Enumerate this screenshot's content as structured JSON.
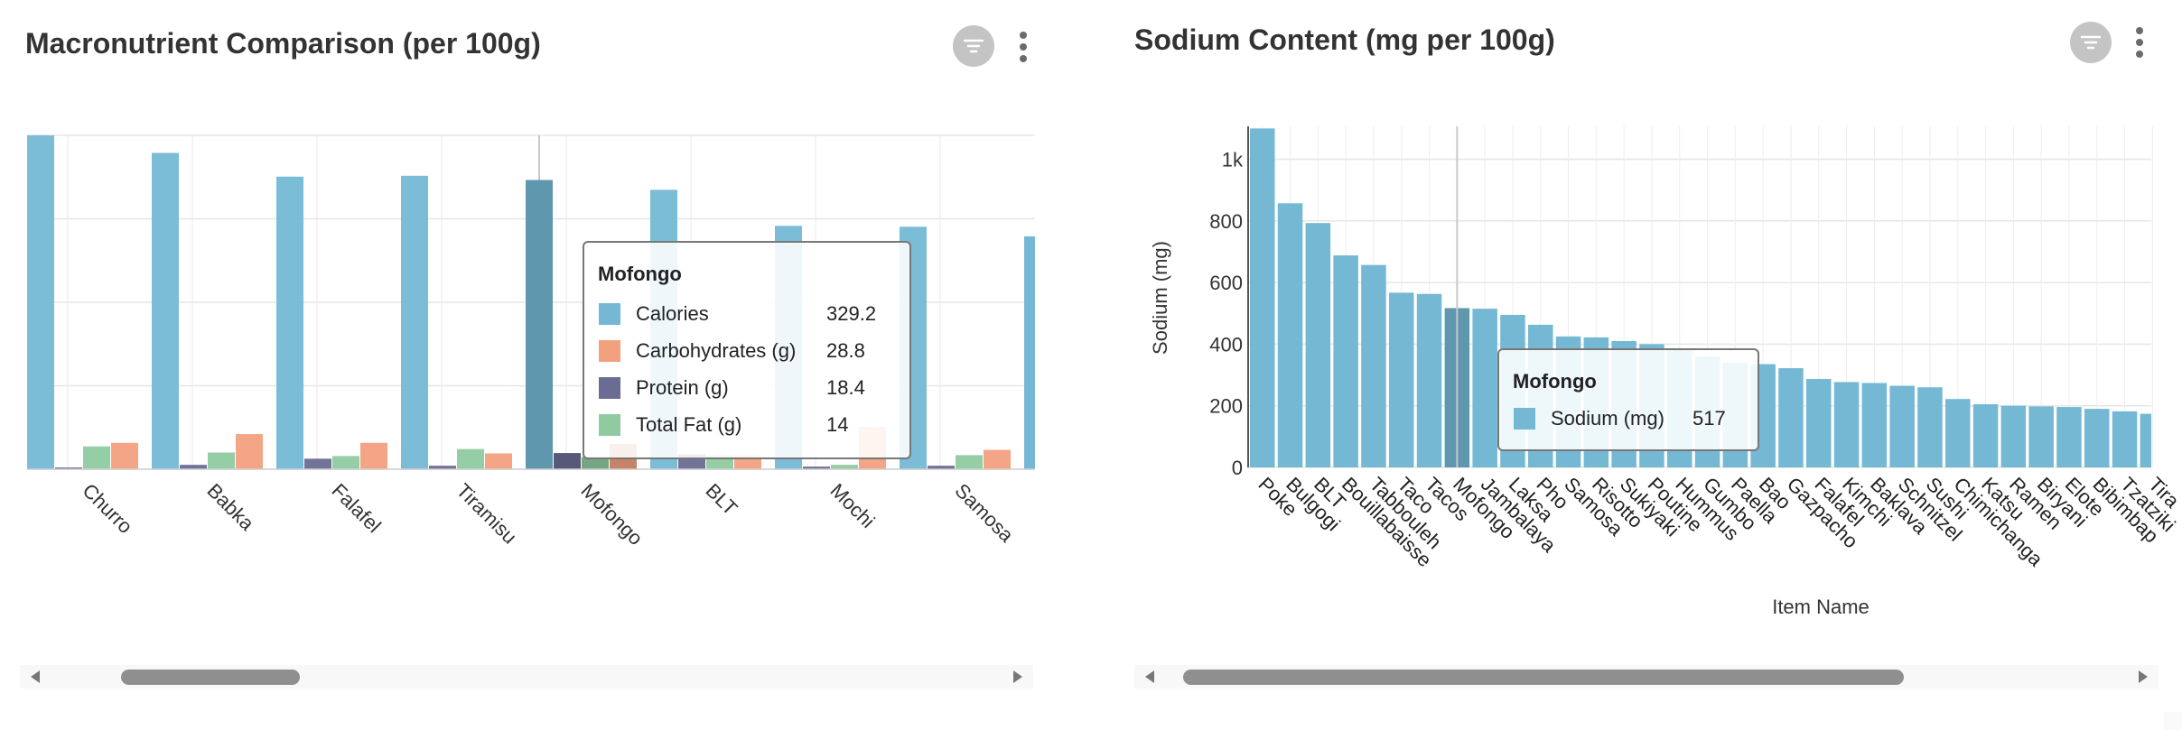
{
  "left_panel": {
    "title": "Macronutrient Comparison (per 100g)",
    "icons": {
      "filter": "filter-icon",
      "more": "more-vertical-icon"
    },
    "tooltip": {
      "title": "Mofongo",
      "rows": [
        {
          "label": "Calories",
          "value": "329.2"
        },
        {
          "label": "Carbohydrates (g)",
          "value": "28.8"
        },
        {
          "label": "Protein (g)",
          "value": "18.4"
        },
        {
          "label": "Total Fat (g)",
          "value": "14"
        }
      ]
    }
  },
  "right_panel": {
    "title": "Sodium Content (mg per 100g)",
    "icons": {
      "filter": "filter-icon",
      "more": "more-vertical-icon"
    },
    "tooltip": {
      "title": "Mofongo",
      "rows": [
        {
          "label": "Sodium (mg)",
          "value": "517"
        }
      ]
    }
  },
  "chart_data": [
    {
      "type": "bar",
      "title": "Macronutrient Comparison (per 100g)",
      "xlabel": "",
      "ylabel": "",
      "categories": [
        "Churro",
        "Babka",
        "Falafel",
        "Tiramisu",
        "Mofongo",
        "BLT",
        "Mochi",
        "Samosa"
      ],
      "series": [
        {
          "name": "Calories",
          "color": "#74b8d4",
          "values": [
            380,
            360,
            333,
            334,
            329.2,
            318,
            277,
            276
          ]
        },
        {
          "name": "Protein (g)",
          "color": "#6a6c94",
          "values": [
            2,
            5,
            12,
            4,
            18.4,
            17,
            3,
            4
          ]
        },
        {
          "name": "Total Fat (g)",
          "color": "#8fcaa0",
          "values": [
            26,
            19,
            15,
            23,
            14,
            16,
            5,
            16
          ]
        },
        {
          "name": "Carbohydrates (g)",
          "color": "#f2a07e",
          "values": [
            30,
            40,
            30,
            18,
            28.8,
            16,
            48,
            22
          ]
        }
      ],
      "partial_next": {
        "Calories": 265
      },
      "ylim": [
        0,
        380
      ],
      "grid": true,
      "highlighted": "Mofongo"
    },
    {
      "type": "bar",
      "title": "Sodium Content (mg per 100g)",
      "xlabel": "Item Name",
      "ylabel": "Sodium (mg)",
      "color": "#74b8d4",
      "categories": [
        "Poke",
        "Bulgogi",
        "BLT",
        "Bouillabaisse",
        "Tabbouleh",
        "Taco",
        "Tacos",
        "Mofongo",
        "Jambalaya",
        "Laksa",
        "Pho",
        "Samosa",
        "Risotto",
        "Sukiyaki",
        "Poutine",
        "Hummus",
        "Gumbo",
        "Paella",
        "Bao",
        "Gazpacho",
        "Falafel",
        "Kimchi",
        "Baklava",
        "Schnitzel",
        "Sushi",
        "Chimichanga",
        "Katsu",
        "Ramen",
        "Biryani",
        "Elote",
        "Bibimbap",
        "Tzatziki",
        "Tira"
      ],
      "values": [
        1100,
        857,
        793,
        688,
        657,
        567,
        563,
        517,
        515,
        495,
        463,
        425,
        422,
        410,
        400,
        382,
        360,
        340,
        335,
        322,
        287,
        277,
        274,
        265,
        260,
        222,
        205,
        200,
        198,
        196,
        190,
        182,
        174
      ],
      "yticks": [
        {
          "value": 0,
          "label": "0"
        },
        {
          "value": 200,
          "label": "200"
        },
        {
          "value": 400,
          "label": "400"
        },
        {
          "value": 600,
          "label": "600"
        },
        {
          "value": 800,
          "label": "800"
        },
        {
          "value": 1000,
          "label": "1k"
        }
      ],
      "ylim": [
        0,
        1100
      ],
      "grid": true,
      "highlighted": "Mofongo"
    }
  ]
}
